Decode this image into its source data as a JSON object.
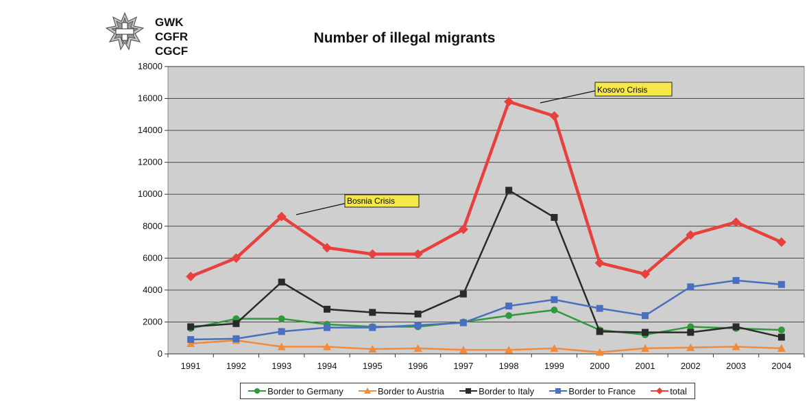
{
  "header": {
    "org_lines": [
      "GWK",
      "CGFR",
      "CGCF"
    ]
  },
  "chart_data": {
    "type": "line",
    "title": "Number of illegal migrants",
    "categories": [
      "1991",
      "1992",
      "1993",
      "1994",
      "1995",
      "1996",
      "1997",
      "1998",
      "1999",
      "2000",
      "2001",
      "2002",
      "2003",
      "2004"
    ],
    "ylim": [
      0,
      18000
    ],
    "yticks": [
      0,
      2000,
      4000,
      6000,
      8000,
      10000,
      12000,
      14000,
      16000,
      18000
    ],
    "grid": true,
    "legend_position": "bottom",
    "series": [
      {
        "name": "Border to Germany",
        "color": "#2e9a3c",
        "marker": "circle",
        "values": [
          1600,
          2200,
          2200,
          1850,
          1700,
          1700,
          2000,
          2400,
          2750,
          1500,
          1200,
          1700,
          1600,
          1500
        ]
      },
      {
        "name": "Border to Austria",
        "color": "#f08a3c",
        "marker": "triangle",
        "values": [
          650,
          850,
          450,
          450,
          300,
          350,
          250,
          250,
          350,
          100,
          350,
          400,
          450,
          350
        ]
      },
      {
        "name": "Border to Italy",
        "color": "#2a2a2a",
        "marker": "square",
        "values": [
          1700,
          1900,
          4500,
          2800,
          2600,
          2500,
          3750,
          10250,
          8550,
          1400,
          1350,
          1350,
          1700,
          1050
        ]
      },
      {
        "name": "Border to France",
        "color": "#4a6fbe",
        "marker": "square",
        "values": [
          900,
          950,
          1400,
          1650,
          1650,
          1800,
          1950,
          3000,
          3400,
          2850,
          2400,
          4200,
          4600,
          4350
        ]
      },
      {
        "name": "total",
        "color": "#e8403c",
        "marker": "diamond",
        "values": [
          4850,
          6000,
          8600,
          6650,
          6250,
          6250,
          7800,
          15800,
          14900,
          5700,
          5000,
          7450,
          8250,
          7000
        ]
      }
    ],
    "annotations": [
      {
        "text": "Bosnia Crisis",
        "target_category": "1993",
        "target_value": 8600
      },
      {
        "text": "Kosovo Crisis",
        "target_category": "1998",
        "target_value": 15800
      }
    ]
  }
}
